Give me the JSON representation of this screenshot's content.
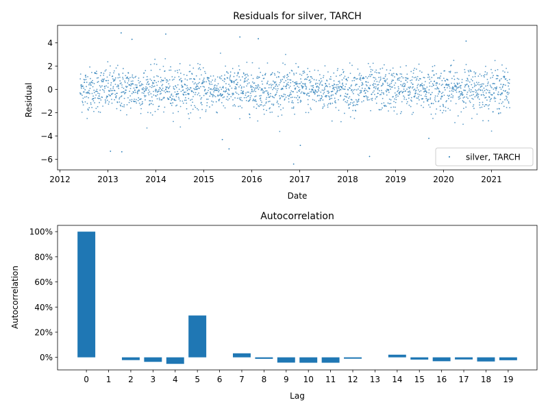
{
  "chart_data": [
    {
      "type": "scatter",
      "title": "Residuals for silver, TARCH",
      "xlabel": "Date",
      "ylabel": "Residual",
      "x_range": [
        "2012-01-01",
        "2021-12-31"
      ],
      "xlim_years": [
        2011.95,
        2021.95
      ],
      "ylim": [
        -6.9,
        5.5
      ],
      "x_ticks": [
        "2012",
        "2013",
        "2014",
        "2015",
        "2016",
        "2017",
        "2018",
        "2019",
        "2020",
        "2021"
      ],
      "y_ticks": [
        -6,
        -4,
        -2,
        0,
        2,
        4
      ],
      "y_tick_labels": [
        "−6",
        "−4",
        "−2",
        "0",
        "2",
        "4"
      ],
      "series": [
        {
          "name": "silver, TARCH",
          "color": "#1f77b4",
          "marker": "point",
          "summary": "approximately 2250 daily residuals from 2012-06 to 2021-05, concentrated within about ±2",
          "outliers": [
            {
              "x": "2013-04-10",
              "y": 4.85
            },
            {
              "x": "2013-07-01",
              "y": 4.3
            },
            {
              "x": "2014-03-15",
              "y": 4.75
            },
            {
              "x": "2015-10-01",
              "y": 4.5
            },
            {
              "x": "2016-02-20",
              "y": 4.35
            },
            {
              "x": "2020-06-20",
              "y": 4.15
            },
            {
              "x": "2013-01-20",
              "y": -5.3
            },
            {
              "x": "2013-04-15",
              "y": -5.35
            },
            {
              "x": "2015-07-10",
              "y": -5.1
            },
            {
              "x": "2015-05-20",
              "y": -4.3
            },
            {
              "x": "2016-11-15",
              "y": -6.4
            },
            {
              "x": "2017-01-05",
              "y": -4.8
            },
            {
              "x": "2018-06-15",
              "y": -5.75
            },
            {
              "x": "2019-09-10",
              "y": -4.2
            }
          ]
        }
      ],
      "legend": {
        "position": "lower-right"
      },
      "grid": false
    },
    {
      "type": "bar",
      "title": "Autocorrelation",
      "xlabel": "Lag",
      "ylabel": "Autocorrelation",
      "categories": [
        "0",
        "1",
        "2",
        "3",
        "4",
        "5",
        "6",
        "7",
        "8",
        "9",
        "10",
        "11",
        "12",
        "13",
        "14",
        "15",
        "16",
        "17",
        "18",
        "19"
      ],
      "values": [
        100,
        0.0,
        -2.2,
        -3.6,
        -5.2,
        33.3,
        0.0,
        3.2,
        -1.2,
        -4.2,
        -4.3,
        -4.3,
        -1.1,
        0.0,
        2.1,
        -1.8,
        -3.1,
        -1.7,
        -3.3,
        -2.3
      ],
      "ylim": [
        -10,
        105
      ],
      "y_ticks": [
        0,
        20,
        40,
        60,
        80,
        100
      ],
      "y_tick_labels": [
        "0%",
        "20%",
        "40%",
        "60%",
        "80%",
        "100%"
      ],
      "color": "#1f77b4",
      "grid": false
    }
  ]
}
